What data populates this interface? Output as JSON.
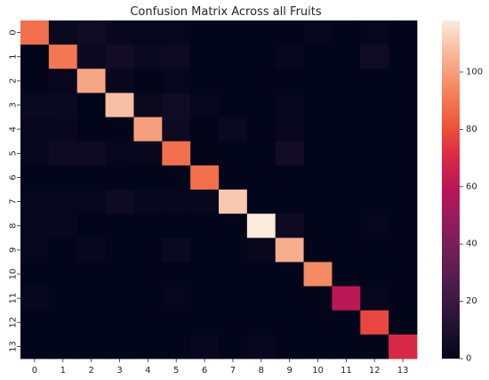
{
  "chart_data": {
    "type": "heatmap",
    "title": "Confusion Matrix Across all Fruits",
    "xlabel": "",
    "ylabel": "",
    "x_categories": [
      "0",
      "1",
      "2",
      "3",
      "4",
      "5",
      "6",
      "7",
      "8",
      "9",
      "10",
      "11",
      "12",
      "13"
    ],
    "y_categories": [
      "0",
      "1",
      "2",
      "3",
      "4",
      "5",
      "6",
      "7",
      "8",
      "9",
      "10",
      "11",
      "12",
      "13"
    ],
    "colormap": "rocket",
    "colorbar": {
      "min": 0,
      "max": 118,
      "ticks": [
        0,
        20,
        40,
        60,
        80,
        100
      ]
    },
    "values": [
      [
        88,
        3,
        5,
        2,
        1,
        1,
        0,
        0,
        0,
        0,
        1,
        0,
        1,
        0
      ],
      [
        0,
        90,
        3,
        6,
        3,
        4,
        0,
        0,
        0,
        2,
        0,
        0,
        5,
        0
      ],
      [
        0,
        2,
        102,
        2,
        0,
        1,
        0,
        0,
        0,
        0,
        0,
        0,
        0,
        0
      ],
      [
        3,
        3,
        0,
        108,
        3,
        5,
        1,
        0,
        0,
        1,
        0,
        0,
        0,
        0
      ],
      [
        1,
        2,
        0,
        0,
        100,
        4,
        0,
        3,
        0,
        2,
        0,
        0,
        0,
        0
      ],
      [
        2,
        4,
        4,
        1,
        2,
        88,
        0,
        0,
        0,
        6,
        0,
        0,
        0,
        0
      ],
      [
        0,
        0,
        0,
        0,
        0,
        0,
        88,
        0,
        0,
        0,
        0,
        0,
        0,
        0
      ],
      [
        1,
        1,
        1,
        4,
        2,
        2,
        2,
        110,
        0,
        0,
        0,
        0,
        0,
        0
      ],
      [
        1,
        2,
        0,
        0,
        0,
        0,
        0,
        0,
        118,
        4,
        0,
        0,
        1,
        0
      ],
      [
        1,
        0,
        2,
        0,
        0,
        3,
        0,
        0,
        2,
        104,
        0,
        0,
        0,
        0
      ],
      [
        0,
        0,
        0,
        0,
        0,
        0,
        0,
        0,
        0,
        0,
        95,
        0,
        0,
        0
      ],
      [
        2,
        0,
        0,
        0,
        0,
        1,
        0,
        0,
        0,
        0,
        0,
        60,
        1,
        0
      ],
      [
        0,
        0,
        0,
        0,
        0,
        0,
        0,
        0,
        0,
        0,
        0,
        0,
        78,
        0
      ],
      [
        0,
        0,
        0,
        0,
        0,
        0,
        2,
        0,
        2,
        0,
        0,
        0,
        0,
        70
      ]
    ]
  }
}
